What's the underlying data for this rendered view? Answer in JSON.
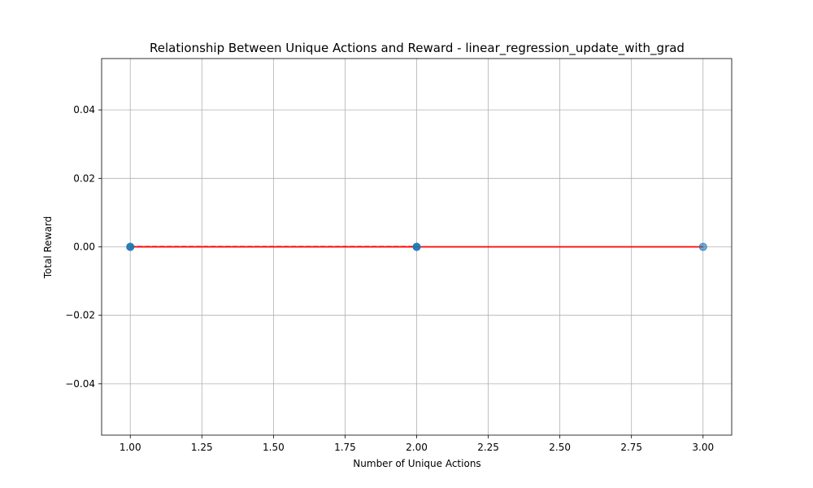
{
  "chart_data": {
    "type": "scatter",
    "title": "Relationship Between Unique Actions and Reward - linear_regression_update_with_grad",
    "xlabel": "Number of Unique Actions",
    "ylabel": "Total Reward",
    "xlim": [
      0.9,
      3.1
    ],
    "ylim": [
      -0.055,
      0.055
    ],
    "xticks": [
      1.0,
      1.25,
      1.5,
      1.75,
      2.0,
      2.25,
      2.5,
      2.75,
      3.0
    ],
    "xtick_labels": [
      "1.00",
      "1.25",
      "1.50",
      "1.75",
      "2.00",
      "2.25",
      "2.50",
      "2.75",
      "3.00"
    ],
    "yticks": [
      -0.04,
      -0.02,
      0.0,
      0.02,
      0.04
    ],
    "ytick_labels": [
      "−0.04",
      "−0.02",
      "0.00",
      "0.02",
      "0.04"
    ],
    "grid": true,
    "points": {
      "x": [
        1,
        1,
        1,
        2,
        2,
        2,
        3
      ],
      "y": [
        0,
        0,
        0,
        0,
        0,
        0,
        0
      ],
      "color": "#1f77b4"
    },
    "trend_line": {
      "x": [
        1,
        3
      ],
      "y": [
        0,
        0
      ],
      "color": "#ff0000"
    }
  }
}
